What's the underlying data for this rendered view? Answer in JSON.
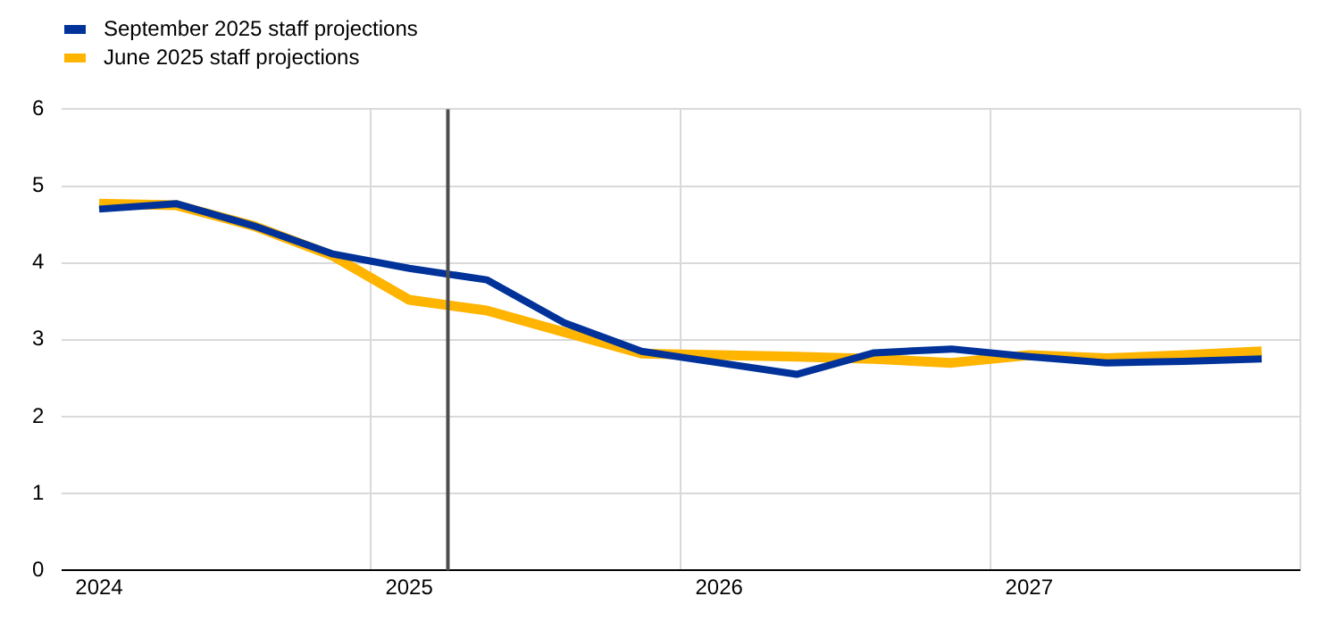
{
  "chart_data": {
    "type": "line",
    "x": [
      2024,
      2024.25,
      2024.5,
      2024.75,
      2025,
      2025.25,
      2025.5,
      2025.75,
      2026,
      2026.25,
      2026.5,
      2026.75,
      2027,
      2027.25,
      2027.5,
      2027.75
    ],
    "series": [
      {
        "name": "September 2025 staff projections",
        "color": "#003299",
        "values": [
          4.7,
          4.77,
          4.48,
          4.12,
          3.93,
          3.78,
          3.22,
          2.85,
          2.7,
          2.55,
          2.83,
          2.88,
          2.78,
          2.7,
          2.72,
          2.75
        ]
      },
      {
        "name": "June 2025 staff projections",
        "color": "#ffb400",
        "values": [
          4.77,
          4.75,
          4.48,
          4.1,
          3.52,
          3.38,
          3.1,
          2.82,
          2.8,
          2.78,
          2.75,
          2.7,
          2.8,
          2.76,
          2.8,
          2.85
        ]
      }
    ],
    "xlim": [
      2023.88,
      2027.875
    ],
    "xticks": [
      2024,
      {
        "value": 2024.875,
        "label": null
      },
      2025,
      {
        "value": 2025.875,
        "label": null
      },
      2026,
      {
        "value": 2026.875,
        "label": null
      },
      2027,
      {
        "value": 2027.875,
        "label": null
      }
    ],
    "ylim": [
      0,
      6
    ],
    "yticks": [
      0,
      1,
      2,
      3,
      4,
      5,
      6
    ],
    "ref_lines": [
      {
        "axis": "x",
        "value": 2025.125,
        "color": "#4d4d4d"
      }
    ],
    "grid": true,
    "legend": "top left",
    "marker": "none",
    "line_style": "solid"
  }
}
